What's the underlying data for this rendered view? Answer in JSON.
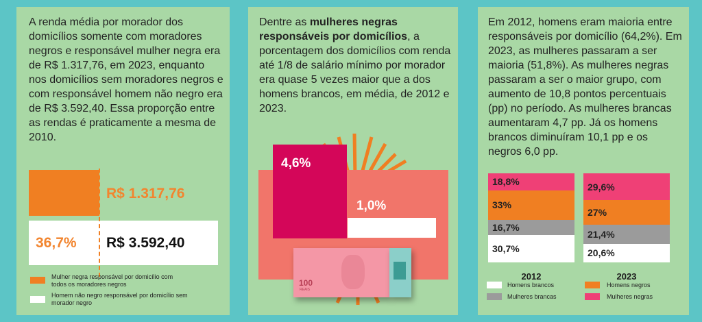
{
  "panel1": {
    "text": "A renda média por morador dos domicílios somente com moradores negros e responsável mulher negra era de R$ 1.317,76, em 2023, enquanto nos domicílios sem moradores negros e com responsável homem não negro era de R$ 3.592,40. Essa proporção entre as rendas é praticamente a mesma de 2010.",
    "value_women": "R$ 1.317,76",
    "value_men": "R$ 3.592,40",
    "ratio": "36,7%",
    "legend": [
      "Mulher negra responsável por domicílio com todos os moradores negros",
      "Homem não negro responsável por domicílio sem morador negro"
    ],
    "colors": {
      "orange": "#f07f22",
      "white": "#ffffff"
    }
  },
  "panel2": {
    "text_pre": "Dentre as ",
    "text_bold": "mulheres negras responsáveis por domicílios",
    "text_post": ", a porcentagem dos domicílios com renda até 1/8 de salário mínimo por morador era quase 5 vezes maior que a dos homens brancos, em média, de 2012 e 2023.",
    "value_women": "4,6%",
    "value_men": "1,0%",
    "banknote": "100",
    "banknote_currency": "REAIS",
    "colors": {
      "crimson": "#d40659",
      "salmon": "#f1756a"
    }
  },
  "panel3": {
    "text": "Em 2012, homens eram maioria entre responsáveis por domicílio (64,2%). Em 2023, as mulheres passaram a ser maioria (51,8%). As mulheres negras passaram a ser o maior grupo, com aumento de 10,8 pontos percentuais (pp) no período. As mulheres brancas aumentaram 4,7 pp. Já os homens brancos diminuíram 10,1 pp e os negros 6,0 pp.",
    "legend": [
      {
        "label": "Homens brancos",
        "color": "#ffffff"
      },
      {
        "label": "Homens negros",
        "color": "#f07f22"
      },
      {
        "label": "Mulheres brancas",
        "color": "#9b9b9b"
      },
      {
        "label": "Mulheres negras",
        "color": "#ef4076"
      }
    ]
  },
  "chart_data": {
    "type": "bar",
    "stacked": true,
    "categories": [
      "2012",
      "2023"
    ],
    "series": [
      {
        "name": "Mulheres negras",
        "values": [
          18.8,
          29.6
        ],
        "labels": [
          "18,8%",
          "29,6%"
        ],
        "color": "#ef4076"
      },
      {
        "name": "Homens negros",
        "values": [
          33,
          27
        ],
        "labels": [
          "33%",
          "27%"
        ],
        "color": "#f07f22"
      },
      {
        "name": "Mulheres brancas",
        "values": [
          16.7,
          21.4
        ],
        "labels": [
          "16,7%",
          "21,4%"
        ],
        "color": "#9b9b9b"
      },
      {
        "name": "Homens brancos",
        "values": [
          30.7,
          20.6
        ],
        "labels": [
          "30,7%",
          "20,6%"
        ],
        "color": "#ffffff"
      }
    ]
  }
}
